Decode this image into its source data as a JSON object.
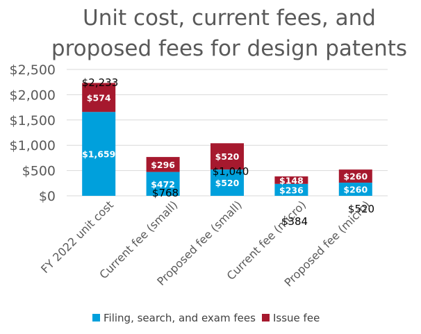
{
  "chart_data": {
    "type": "bar",
    "stacked": true,
    "title_lines": [
      "Unit cost, current fees, and",
      "proposed fees for design patents"
    ],
    "categories": [
      "FY 2022 unit cost",
      "Current fee (small)",
      "Proposed fee (small)",
      "Current fee (micro)",
      "Proposed fee (micro)"
    ],
    "series": [
      {
        "name": "Filing, search, and exam fees",
        "color": "#00A0DC",
        "values": [
          1659,
          472,
          520,
          236,
          260
        ],
        "labels": [
          "$1,659",
          "$472",
          "$520",
          "$236",
          "$260"
        ]
      },
      {
        "name": "Issue fee",
        "color": "#A6192E",
        "values": [
          574,
          296,
          520,
          148,
          260
        ],
        "labels": [
          "$574",
          "$296",
          "$520",
          "$148",
          "$260"
        ]
      }
    ],
    "totals": [
      2233,
      768,
      1040,
      384,
      520
    ],
    "total_labels": [
      "$2,233",
      "$768",
      "$1,040",
      "$384",
      "$520"
    ],
    "y_ticks": [
      0,
      500,
      1000,
      1500,
      2000,
      2500
    ],
    "y_tick_labels": [
      "$0",
      "$500",
      "$1,000",
      "$1,500",
      "$2,000",
      "$2,500"
    ],
    "ylim": [
      0,
      2500
    ],
    "grid": true,
    "legend_position": "bottom",
    "xlabel": "",
    "ylabel": ""
  }
}
